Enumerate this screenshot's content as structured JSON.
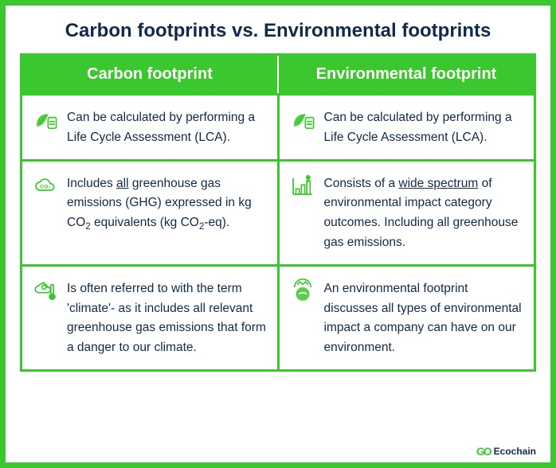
{
  "colors": {
    "accent": "#3bc72e",
    "text": "#0f2a4a",
    "white": "#ffffff",
    "bg": "#ffffff"
  },
  "title": "Carbon footprints vs. Environmental footprints",
  "table": {
    "headers": [
      "Carbon footprint",
      "Environmental footprint"
    ],
    "rows": [
      {
        "left": {
          "icon": "leaf-calc-icon",
          "text": "Can be calculated by performing a Life Cycle Assessment (LCA)."
        },
        "right": {
          "icon": "leaf-calc-icon",
          "text": "Can be calculated by performing a Life Cycle Assessment (LCA)."
        }
      },
      {
        "left": {
          "icon": "co2-cloud-icon",
          "html": "Includes <span class=\"u\">all</span> greenhouse gas emissions (GHG) expressed in kg CO<sub>2</sub> equivalents (kg CO<sub>2</sub>-eq)."
        },
        "right": {
          "icon": "growth-chart-icon",
          "html": "Consists of a <span class=\"u\">wide spectrum</span> of environmental impact category outcomes. Including all greenhouse gas emissions."
        }
      },
      {
        "left": {
          "icon": "climate-temp-icon",
          "text": "Is often referred to with the term 'climate'- as it includes all relevant greenhouse gas emissions that form a danger to our climate."
        },
        "right": {
          "icon": "recycle-earth-icon",
          "text": "An environmental footprint discusses all types of environmental impact a company can have on our environment."
        }
      }
    ]
  },
  "logo": {
    "mark": "GO",
    "name": "Ecochain"
  },
  "typography": {
    "title_fontsize": 24,
    "header_fontsize": 20,
    "body_fontsize": 15.5,
    "body_lineheight": 1.6
  }
}
